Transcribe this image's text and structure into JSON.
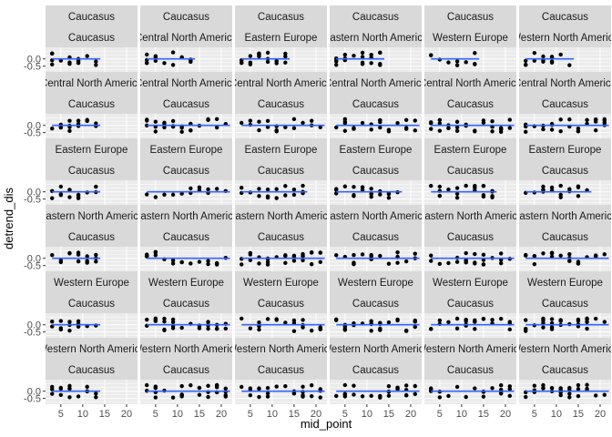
{
  "chart_data": {
    "type": "scatter",
    "layout": "facet_grid",
    "xlabel": "mid_point",
    "ylabel": "detrend_dis",
    "x_ticks": [
      5,
      10,
      15,
      20
    ],
    "x_tick_labels": [
      "5",
      "10",
      "15",
      "20"
    ],
    "xlim": [
      1.5,
      22.5
    ],
    "y_ticks": [
      0.0,
      -0.5
    ],
    "y_tick_labels": [
      "0.0",
      "-0.5"
    ],
    "ylim": [
      -0.9,
      0.8
    ],
    "grid": true,
    "panel_background": "#ebebeb",
    "strip_background": "#d9d9d9",
    "point_color": "#000000",
    "line_color": "#3366ff",
    "column_strips": [
      "Caucasus",
      "Central North America",
      "Eastern Europe",
      "Eastern North America",
      "Western Europe",
      "Western North America"
    ],
    "row_top_strips": [
      "Caucasus",
      "Central North America",
      "Eastern Europe",
      "Eastern North America",
      "Western Europe",
      "Western North America"
    ],
    "row_bottom_strips": [
      "Caucasus",
      "Caucasus",
      "Caucasus",
      "Caucasus",
      "Caucasus",
      "Caucasus"
    ],
    "panel_x_ranges": [
      [
        [
          3,
          14
        ],
        [
          3,
          14
        ],
        [
          3,
          14
        ],
        [
          3,
          14
        ],
        [
          3,
          14
        ],
        [
          3,
          14
        ]
      ],
      [
        [
          3,
          14
        ],
        [
          3,
          22
        ],
        [
          3,
          22
        ],
        [
          3,
          22
        ],
        [
          3,
          22
        ],
        [
          3,
          22
        ]
      ],
      [
        [
          3,
          14
        ],
        [
          3,
          22
        ],
        [
          3,
          18
        ],
        [
          3,
          18
        ],
        [
          3,
          18
        ],
        [
          3,
          18
        ]
      ],
      [
        [
          3,
          14
        ],
        [
          3,
          22
        ],
        [
          3,
          22
        ],
        [
          3,
          22
        ],
        [
          3,
          22
        ],
        [
          3,
          22
        ]
      ],
      [
        [
          3,
          14
        ],
        [
          3,
          22
        ],
        [
          3,
          22
        ],
        [
          3,
          22
        ],
        [
          3,
          22
        ],
        [
          3,
          22
        ]
      ],
      [
        [
          3,
          14
        ],
        [
          3,
          22
        ],
        [
          3,
          22
        ],
        [
          3,
          22
        ],
        [
          3,
          22
        ],
        [
          3,
          22
        ]
      ]
    ]
  }
}
